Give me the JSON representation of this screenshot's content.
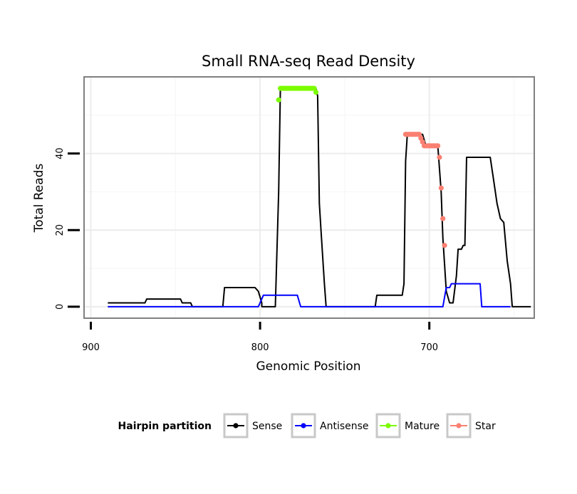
{
  "chart_data": {
    "type": "line",
    "title": "Small RNA-seq Read Density",
    "xlabel": "Genomic Position",
    "ylabel": "Total Reads",
    "xlim": [
      904,
      638
    ],
    "ylim": [
      -3,
      60
    ],
    "x_ticks": [
      900,
      800,
      700
    ],
    "y_ticks": [
      0,
      20,
      40
    ],
    "x_minor_gridlines": [
      850,
      750,
      650
    ],
    "y_minor_gridlines": [
      10,
      30,
      50
    ],
    "grid": true,
    "legend": {
      "title": "Hairpin partition",
      "position": "bottom",
      "entries": [
        "Sense",
        "Antisense",
        "Mature",
        "Star"
      ]
    },
    "series": [
      {
        "name": "Sense",
        "color": "#000000",
        "style": "line",
        "points": [
          [
            890,
            1
          ],
          [
            868,
            1
          ],
          [
            867,
            2
          ],
          [
            847,
            2
          ],
          [
            846,
            1
          ],
          [
            841,
            1
          ],
          [
            840,
            0
          ],
          [
            822,
            0
          ],
          [
            821,
            5
          ],
          [
            803,
            5
          ],
          [
            801,
            4
          ],
          [
            799,
            1
          ],
          [
            799,
            0
          ],
          [
            791,
            0
          ],
          [
            789,
            30
          ],
          [
            788,
            57
          ],
          [
            767,
            57
          ],
          [
            766,
            55
          ],
          [
            765,
            27
          ],
          [
            764,
            20
          ],
          [
            762,
            6
          ],
          [
            761,
            0
          ],
          [
            732,
            0
          ],
          [
            731,
            3
          ],
          [
            716,
            3
          ],
          [
            715,
            6
          ],
          [
            714,
            38
          ],
          [
            713,
            45
          ],
          [
            704,
            45
          ],
          [
            702,
            42
          ],
          [
            695,
            42
          ],
          [
            693,
            30
          ],
          [
            692,
            18
          ],
          [
            690,
            4
          ],
          [
            688,
            1
          ],
          [
            686,
            1
          ],
          [
            684,
            8
          ],
          [
            683,
            15
          ],
          [
            681,
            15
          ],
          [
            680,
            16
          ],
          [
            679,
            16
          ],
          [
            678,
            39
          ],
          [
            664,
            39
          ],
          [
            662,
            33
          ],
          [
            660,
            27
          ],
          [
            658,
            23
          ],
          [
            656,
            22
          ],
          [
            654,
            12
          ],
          [
            652,
            6
          ],
          [
            651,
            0
          ],
          [
            640,
            0
          ]
        ]
      },
      {
        "name": "Antisense",
        "color": "#0000ff",
        "style": "line",
        "points": [
          [
            890,
            0
          ],
          [
            801,
            0
          ],
          [
            798,
            3
          ],
          [
            778,
            3
          ],
          [
            776,
            0
          ],
          [
            692,
            0
          ],
          [
            690,
            5
          ],
          [
            688,
            5
          ],
          [
            687,
            6
          ],
          [
            670,
            6
          ],
          [
            669,
            0
          ],
          [
            652,
            0
          ]
        ]
      },
      {
        "name": "Mature",
        "color": "#7cfc00",
        "style": "points",
        "points": [
          [
            789,
            54
          ],
          [
            788,
            57
          ],
          [
            787,
            57
          ],
          [
            786,
            57
          ],
          [
            785,
            57
          ],
          [
            784,
            57
          ],
          [
            783,
            57
          ],
          [
            782,
            57
          ],
          [
            781,
            57
          ],
          [
            780,
            57
          ],
          [
            779,
            57
          ],
          [
            778,
            57
          ],
          [
            777,
            57
          ],
          [
            776,
            57
          ],
          [
            775,
            57
          ],
          [
            774,
            57
          ],
          [
            773,
            57
          ],
          [
            772,
            57
          ],
          [
            771,
            57
          ],
          [
            770,
            57
          ],
          [
            769,
            57
          ],
          [
            768,
            57
          ],
          [
            767,
            56
          ]
        ]
      },
      {
        "name": "Star",
        "color": "#fa8072",
        "style": "points",
        "points": [
          [
            714,
            45
          ],
          [
            713,
            45
          ],
          [
            712,
            45
          ],
          [
            711,
            45
          ],
          [
            710,
            45
          ],
          [
            709,
            45
          ],
          [
            708,
            45
          ],
          [
            707,
            45
          ],
          [
            706,
            45
          ],
          [
            705,
            44
          ],
          [
            704,
            43
          ],
          [
            703,
            42
          ],
          [
            702,
            42
          ],
          [
            701,
            42
          ],
          [
            700,
            42
          ],
          [
            699,
            42
          ],
          [
            698,
            42
          ],
          [
            697,
            42
          ],
          [
            696,
            42
          ],
          [
            695,
            42
          ],
          [
            694,
            39
          ],
          [
            693,
            31
          ],
          [
            692,
            23
          ],
          [
            691,
            16
          ]
        ]
      }
    ]
  }
}
